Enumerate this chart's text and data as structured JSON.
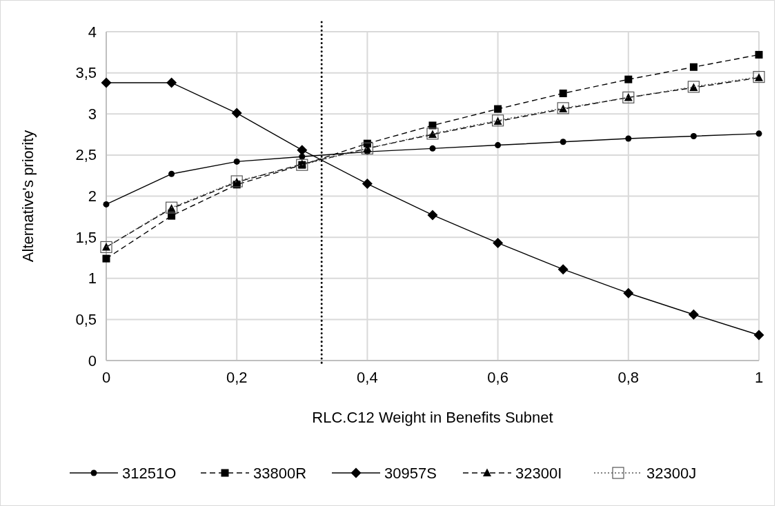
{
  "chart_data": {
    "type": "line",
    "xlabel": "RLC.C12 Weight in Benefits Subnet",
    "ylabel": "Alternative's priority",
    "x": [
      0,
      0.1,
      0.2,
      0.3,
      0.4,
      0.5,
      0.6,
      0.7,
      0.8,
      0.9,
      1
    ],
    "xlim": [
      0,
      1
    ],
    "xticks": [
      0,
      {
        "value": 0.2,
        "label": "0,2"
      },
      {
        "value": 0.4,
        "label": "0,4"
      },
      {
        "value": 0.6,
        "label": "0,6"
      },
      {
        "value": 0.8,
        "label": "0,8"
      },
      1
    ],
    "ylim": [
      0,
      4
    ],
    "yticks": [
      0,
      {
        "value": 0.5,
        "label": "0,5"
      },
      1,
      {
        "value": 1.5,
        "label": "1,5"
      },
      2,
      {
        "value": 2.5,
        "label": "2,5"
      },
      3,
      {
        "value": 3.5,
        "label": "3,5"
      },
      4
    ],
    "grid": true,
    "legend": "bottom",
    "ref_lines": [
      {
        "axis": "x",
        "value": 0.33,
        "line_style": "dotted",
        "color": "#000000"
      }
    ],
    "series": [
      {
        "name": "31251O",
        "color": "#000000",
        "marker": "circle",
        "line_style": "solid",
        "values": [
          1.9,
          2.27,
          2.42,
          2.48,
          2.54,
          2.58,
          2.62,
          2.66,
          2.7,
          2.73,
          2.76
        ]
      },
      {
        "name": "33800R",
        "color": "#000000",
        "marker": "square",
        "line_style": "dashed",
        "values": [
          1.24,
          1.76,
          2.14,
          2.38,
          2.64,
          2.86,
          3.06,
          3.25,
          3.42,
          3.57,
          3.72
        ]
      },
      {
        "name": "30957S",
        "color": "#000000",
        "marker": "diamond",
        "line_style": "solid",
        "values": [
          3.38,
          3.38,
          3.01,
          2.56,
          2.15,
          1.77,
          1.43,
          1.11,
          0.82,
          0.56,
          0.31
        ]
      },
      {
        "name": "32300I",
        "color": "#000000",
        "marker": "triangle",
        "line_style": "dashed",
        "values": [
          1.38,
          1.85,
          2.17,
          2.39,
          2.58,
          2.75,
          2.91,
          3.06,
          3.2,
          3.32,
          3.44
        ]
      },
      {
        "name": "32300J",
        "color": "#555555",
        "marker": "square",
        "line_style": "dotted",
        "values": [
          1.38,
          1.86,
          2.18,
          2.38,
          2.58,
          2.76,
          2.92,
          3.07,
          3.2,
          3.33,
          3.45
        ]
      }
    ]
  }
}
